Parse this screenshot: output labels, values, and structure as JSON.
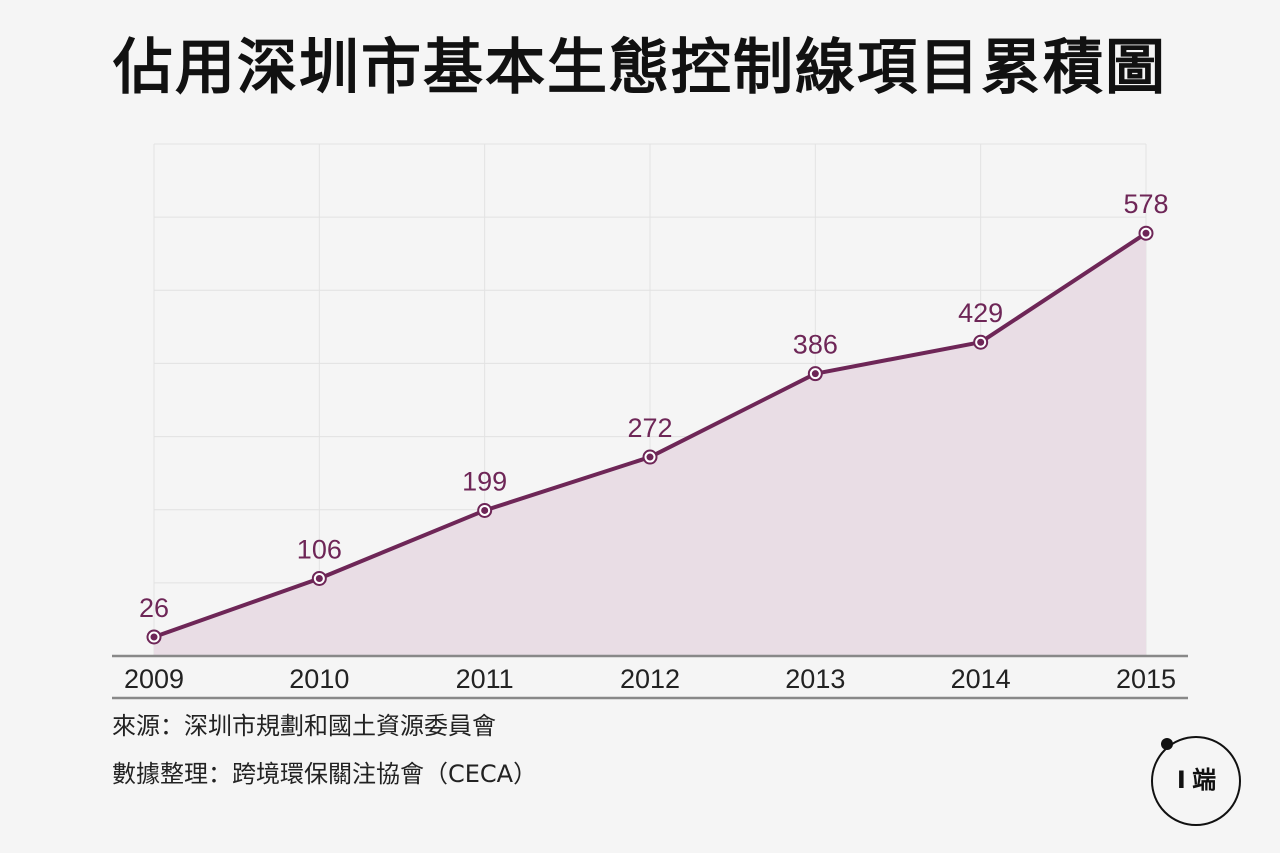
{
  "title": "佔用深圳市基本生態控制線項目累積圖",
  "chart_data": {
    "type": "area",
    "title": "佔用深圳市基本生態控制線項目累積圖",
    "categories": [
      "2009",
      "2010",
      "2011",
      "2012",
      "2013",
      "2014",
      "2015"
    ],
    "values": [
      26,
      106,
      199,
      272,
      386,
      429,
      578
    ],
    "ylim": [
      0,
      700
    ],
    "grid": true,
    "xlabel": "",
    "ylabel": "",
    "line_color": "#6e2657",
    "fill_color": "#e9dde5"
  },
  "source": {
    "line1": "來源：深圳市規劃和國土資源委員會",
    "line2": "數據整理：跨境環保關注協會（CECA）"
  },
  "logo": {
    "text": "I 端"
  }
}
